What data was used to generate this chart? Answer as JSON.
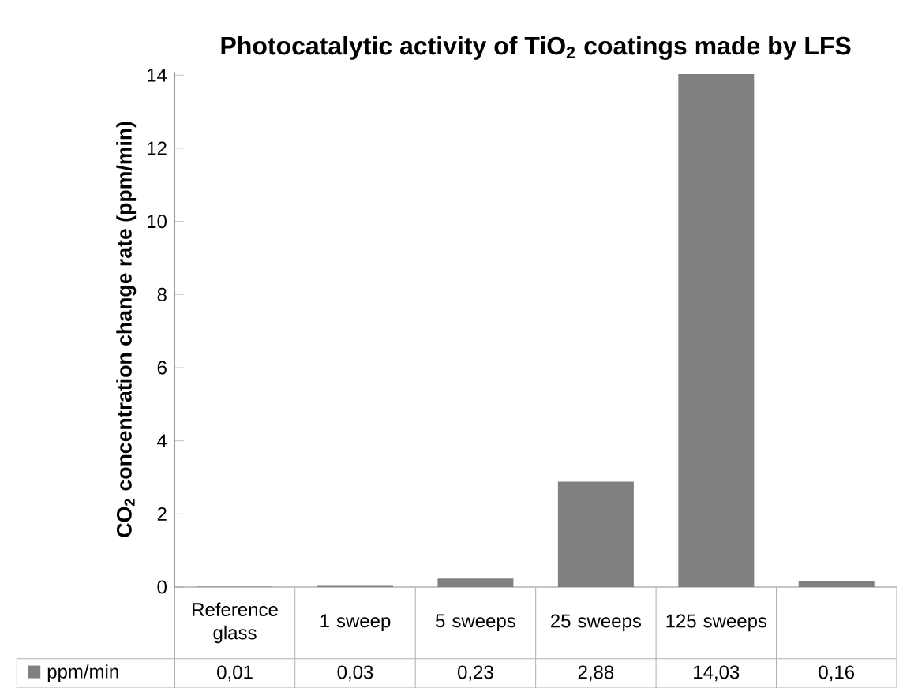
{
  "chart_data": {
    "type": "bar",
    "title": "Photocatalytic activity of TiO$_{2}$ coatings made by LFS",
    "ylabel": "CO$_{2}$ concentration change rate (ppm/min)",
    "categories": [
      "Reference glass",
      "1 sweep",
      "5 sweeps",
      "25 sweeps",
      "125 sweeps",
      null
    ],
    "series": [
      {
        "name": "ppm/min",
        "color": "#808080",
        "values": [
          0.01,
          0.03,
          0.23,
          2.88,
          14.03,
          0.16
        ],
        "value_labels": [
          "0,01",
          "0,03",
          "0,23",
          "2,88",
          "14,03",
          "0,16"
        ]
      }
    ],
    "ylim": [
      0,
      14.1
    ],
    "yticks": [
      0,
      2,
      4,
      6,
      8,
      10,
      12,
      14
    ],
    "legend": "bottom left"
  }
}
